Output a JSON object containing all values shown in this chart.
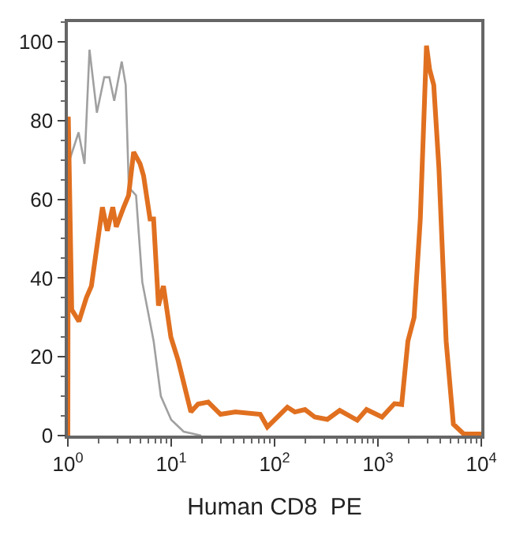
{
  "chart_data": {
    "type": "line",
    "xlabel": "Human CD8  PE",
    "log": "x",
    "xlim": [
      1,
      10000
    ],
    "xticks": [
      {
        "value": 1,
        "label": "10$^{0}$"
      },
      {
        "value": 10,
        "label": "10$^{1}$"
      },
      {
        "value": 100,
        "label": "10$^{2}$"
      },
      {
        "value": 1000,
        "label": "10$^{3}$"
      },
      {
        "value": 10000,
        "label": "10$^{4}$"
      }
    ],
    "ylim": [
      0,
      105
    ],
    "yticks": [
      0,
      20,
      40,
      60,
      80,
      100
    ],
    "marker": "none",
    "line_style": "solid",
    "series": [
      {
        "color": "#a0a0a0",
        "x": [
          1.04,
          1.27,
          1.45,
          1.62,
          1.91,
          2.25,
          2.52,
          2.81,
          3.32,
          3.63,
          3.89,
          4.57,
          5.25,
          6.76,
          7.94,
          10,
          13.2,
          19.5
        ],
        "values": [
          70,
          77,
          69,
          98,
          82,
          91,
          91,
          85,
          95,
          89,
          63,
          61,
          39,
          24,
          10,
          4,
          1,
          0
        ]
      },
      {
        "color": "#e07020",
        "x": [
          1,
          1.01,
          1.09,
          1.28,
          1.51,
          1.69,
          2.16,
          2.41,
          2.72,
          2.94,
          3.47,
          3.87,
          4.33,
          5.0,
          5.4,
          6.24,
          6.75,
          7.53,
          8.41,
          9.93,
          11.7,
          15.5,
          18.2,
          22.8,
          30.0,
          41.8,
          72.6,
          85.1,
          133,
          157,
          197,
          245,
          324,
          427,
          631,
          776,
          1096,
          1445,
          1698,
          1950,
          2239,
          2570,
          2951,
          3162,
          3467,
          3890,
          4571,
          5370,
          6761,
          10000
        ],
        "values": [
          0,
          81,
          32,
          29,
          35,
          38,
          58,
          52,
          58,
          53,
          58,
          61,
          72,
          69,
          66,
          55,
          55,
          33,
          38,
          25,
          19,
          6,
          8,
          8.5,
          5.4,
          6,
          5.4,
          2.2,
          7.2,
          6,
          6.6,
          4.7,
          4.1,
          6.4,
          3.9,
          6.6,
          4.7,
          8.1,
          7.9,
          24,
          30,
          55,
          99,
          93,
          89,
          68,
          24,
          2.9,
          0.4,
          0.4
        ]
      }
    ]
  }
}
